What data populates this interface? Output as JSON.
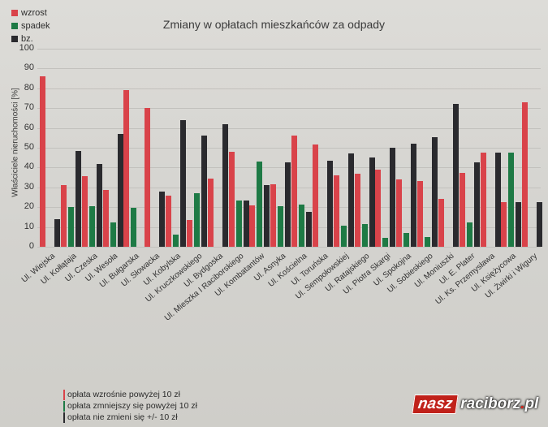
{
  "chart_data": {
    "type": "bar",
    "title": "Zmiany w opłatach mieszkańców za odpady",
    "xlabel": "",
    "ylabel": "Właściciele nieruchomości [%]",
    "ylim": [
      0,
      100
    ],
    "yticks": [
      0,
      10,
      20,
      30,
      40,
      50,
      60,
      70,
      80,
      90,
      100
    ],
    "grid": true,
    "legend_position": "top-left",
    "categories": [
      "Ul. Wiejska",
      "Ul. Kołłątaja",
      "Ul. Czeska",
      "Ul. Wesoła",
      "Ul. Bułgarska",
      "Ul. Słowacka",
      "Ul. Kobylska",
      "Ul. Kruczkowskiego",
      "Ul. Bydgoska",
      "Ul. Mieszka I Raciborskiego",
      "Ul. Kombatantów",
      "Ul. Asnyka",
      "Ul. Kościelna",
      "Ul. Toruńska",
      "Ul. Sempołowskiej",
      "Ul. Ratajskiego",
      "Ul. Piotra Skargi",
      "Ul. Spokojna",
      "Ul. Sobieskiego",
      "Ul. Moniuszki",
      "Ul. E. Plater",
      "Ul. Ks. Przemysława",
      "Ul. Księżycowa",
      "Ul. Żwirki i Wigury"
    ],
    "series": [
      {
        "name": "wzrost",
        "color": "#d9434a",
        "values": [
          86,
          31,
          35.5,
          28.5,
          79,
          70,
          26,
          13.5,
          34.5,
          48,
          21,
          31.5,
          56,
          51.5,
          36,
          37,
          39,
          34,
          33,
          24,
          37.5,
          47.5,
          22.5,
          73
        ]
      },
      {
        "name": "spadek",
        "color": "#1e7a45",
        "values": [
          0,
          20,
          20.5,
          12.5,
          19.5,
          0,
          6,
          27,
          0,
          23.5,
          43,
          20.5,
          21.5,
          0,
          10.5,
          11.5,
          4.5,
          7,
          5,
          0,
          12.5,
          0,
          47.5,
          0
        ]
      },
      {
        "name": "bz.",
        "color": "#2a2a2e",
        "values": [
          14,
          48.5,
          42,
          57,
          0,
          28,
          64,
          56,
          62,
          23.5,
          31,
          42.5,
          17.5,
          43.5,
          47,
          45,
          50,
          52,
          55.5,
          72,
          42.5,
          47.5,
          22.5,
          22.5
        ]
      }
    ]
  },
  "legend_top": [
    {
      "label": "wzrost",
      "color": "#d9434a"
    },
    {
      "label": "spadek",
      "color": "#1e7a45"
    },
    {
      "label": "bz.",
      "color": "#2a2a2e"
    }
  ],
  "legend_bottom": [
    {
      "label": "opłata wzrośnie powyżej 10 zł",
      "color": "#d9434a"
    },
    {
      "label": "opłata zmniejszy się powyżej 10 zł",
      "color": "#1e7a45"
    },
    {
      "label": "opłata nie zmieni się +/- 10 zł",
      "color": "#2a2a2e"
    }
  ],
  "logo": {
    "part1": "nasz",
    "part2": "raciborz",
    "dot": ".",
    "part3": "pl"
  }
}
